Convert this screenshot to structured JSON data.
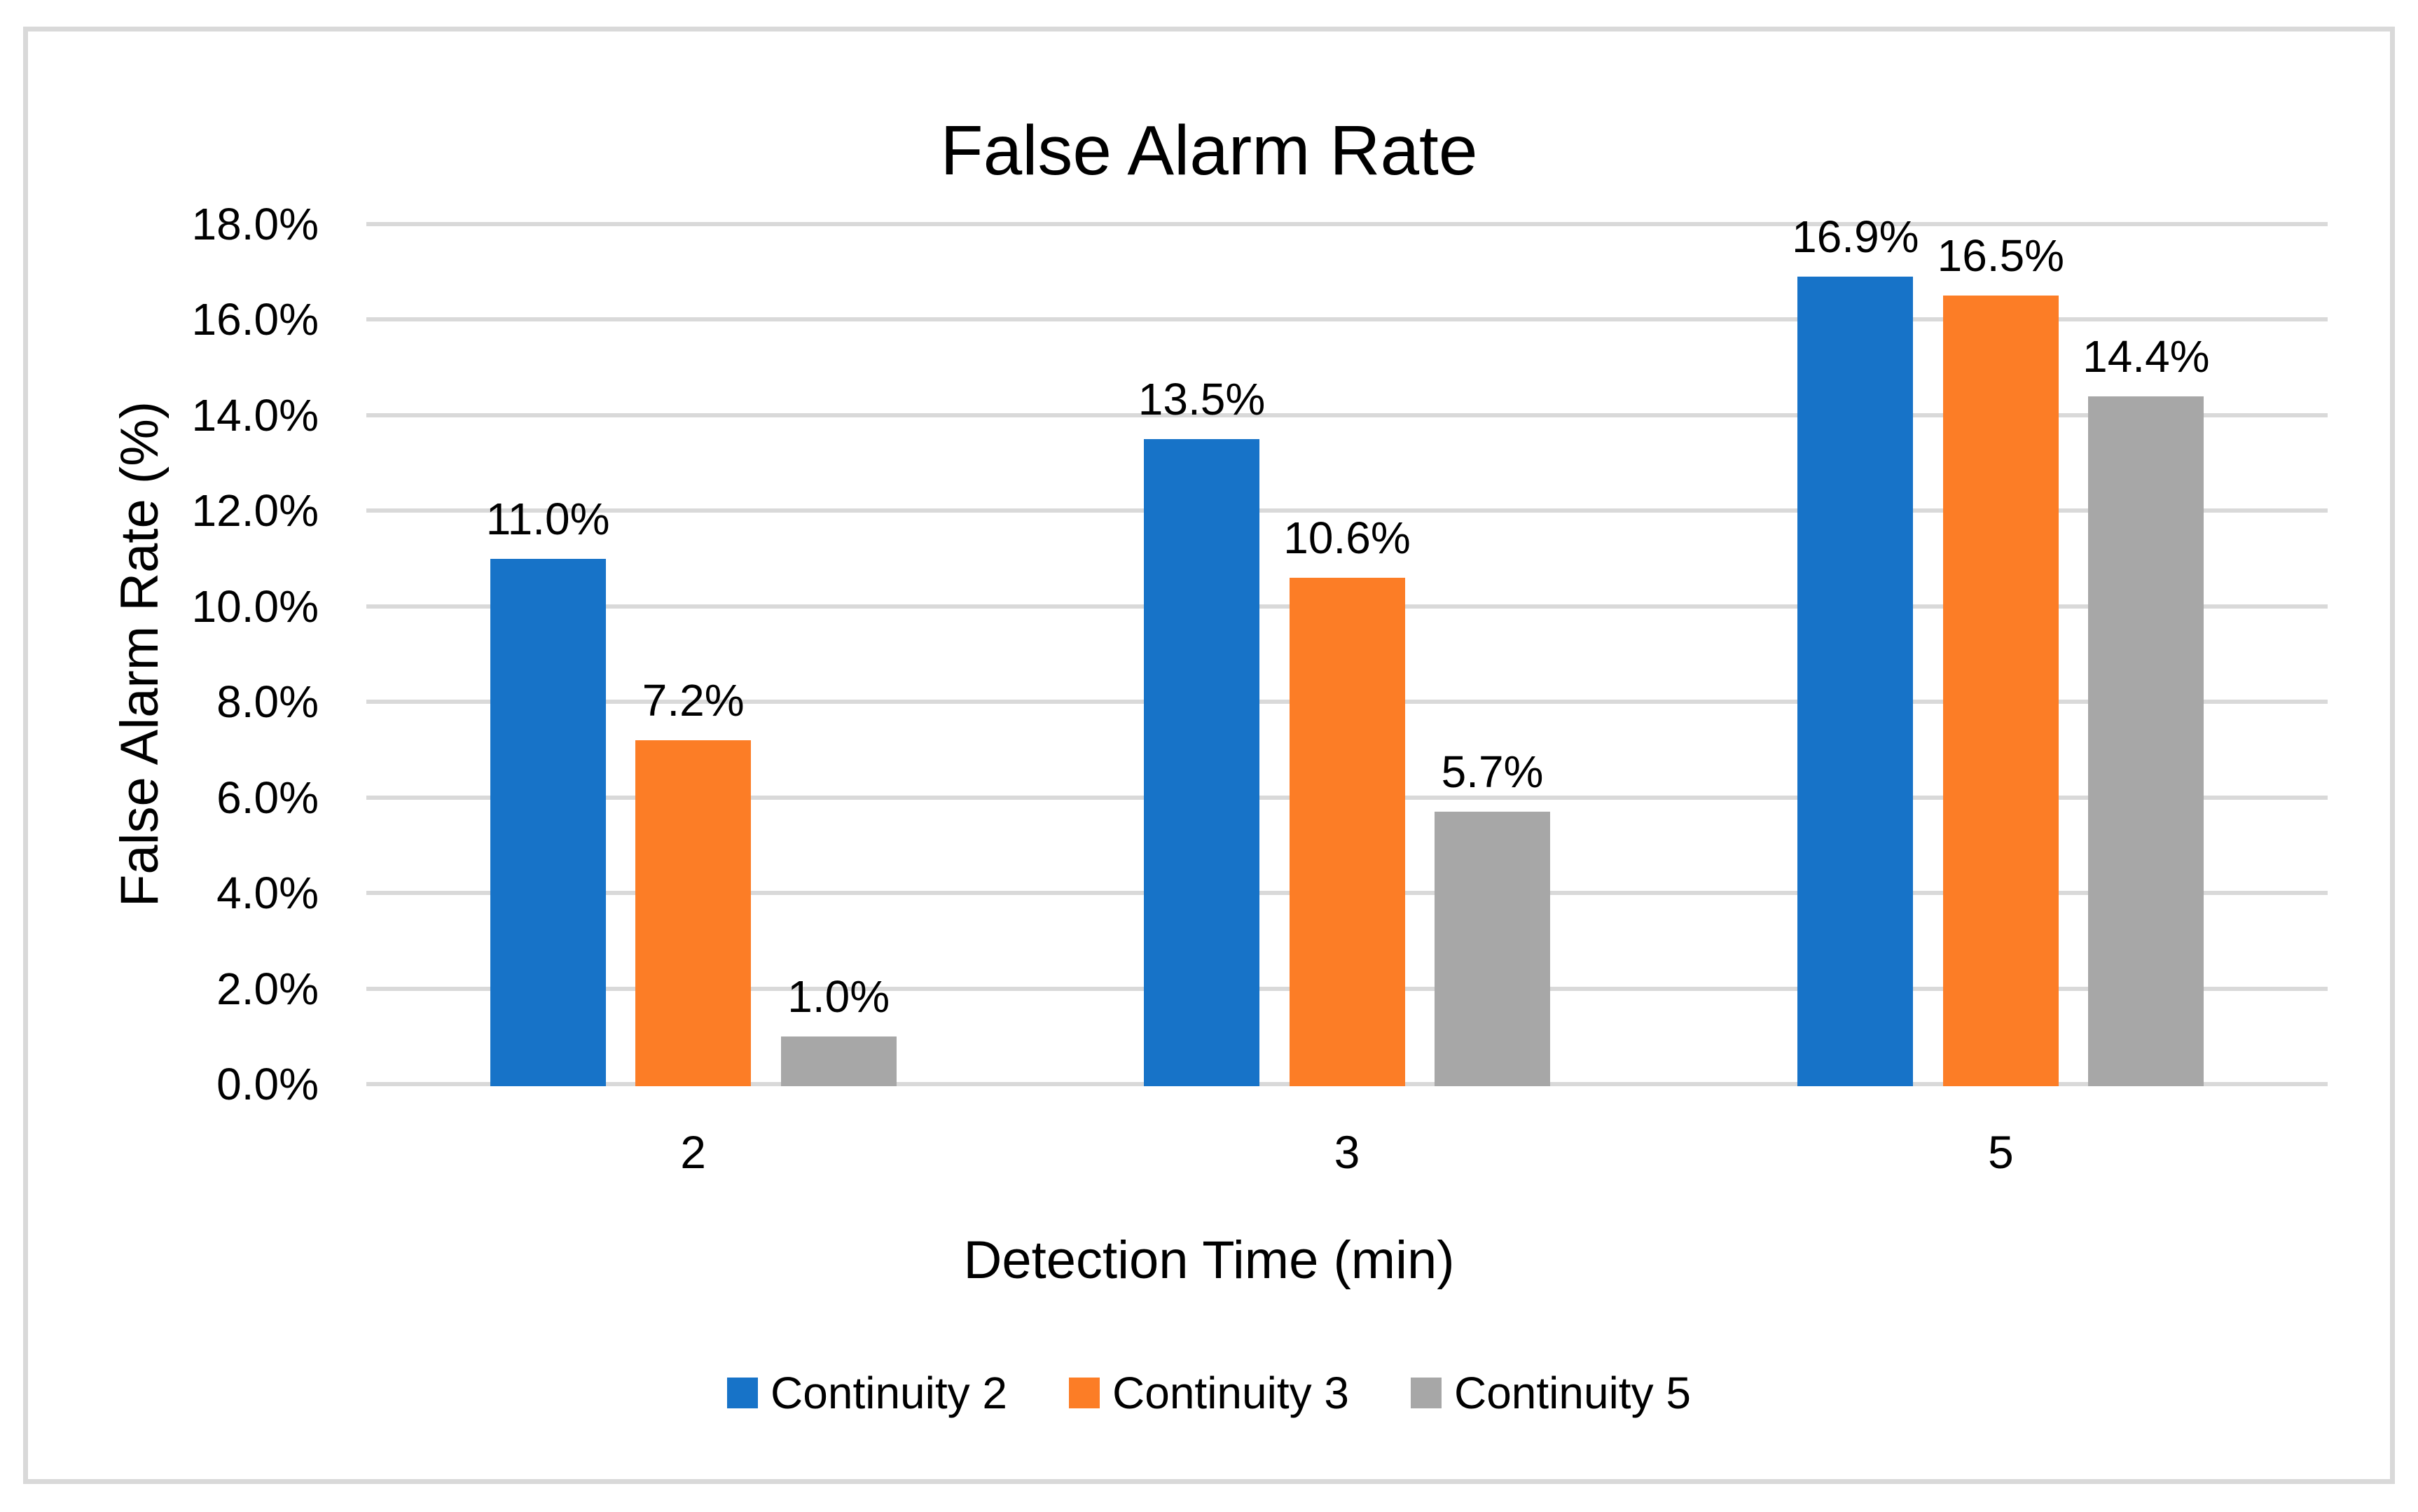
{
  "chart_data": {
    "type": "bar",
    "title": "False Alarm Rate",
    "xlabel": "Detection Time (min)",
    "ylabel": "False Alarm Rate (%)",
    "categories": [
      "2",
      "3",
      "5"
    ],
    "series": [
      {
        "name": "Continuity 2",
        "color": "#1773C8",
        "values": [
          11.0,
          13.5,
          16.9
        ]
      },
      {
        "name": "Continuity 3",
        "color": "#FC7D26",
        "values": [
          7.2,
          10.6,
          16.5
        ]
      },
      {
        "name": "Continuity 5",
        "color": "#A7A7A7",
        "values": [
          1.0,
          5.7,
          14.4
        ]
      }
    ],
    "data_labels": [
      [
        "11.0%",
        "13.5%",
        "16.9%"
      ],
      [
        "7.2%",
        "10.6%",
        "16.5%"
      ],
      [
        "1.0%",
        "5.7%",
        "14.4%"
      ]
    ],
    "ylim": [
      0,
      18
    ],
    "ytick_step": 2,
    "ytick_labels": [
      "0.0%",
      "2.0%",
      "4.0%",
      "6.0%",
      "8.0%",
      "10.0%",
      "12.0%",
      "14.0%",
      "16.0%",
      "18.0%"
    ],
    "grid": true,
    "legend_position": "bottom",
    "gridline_color": "#D9D9D9",
    "frame_color": "#D9D9D9",
    "text_color": "#000000"
  }
}
